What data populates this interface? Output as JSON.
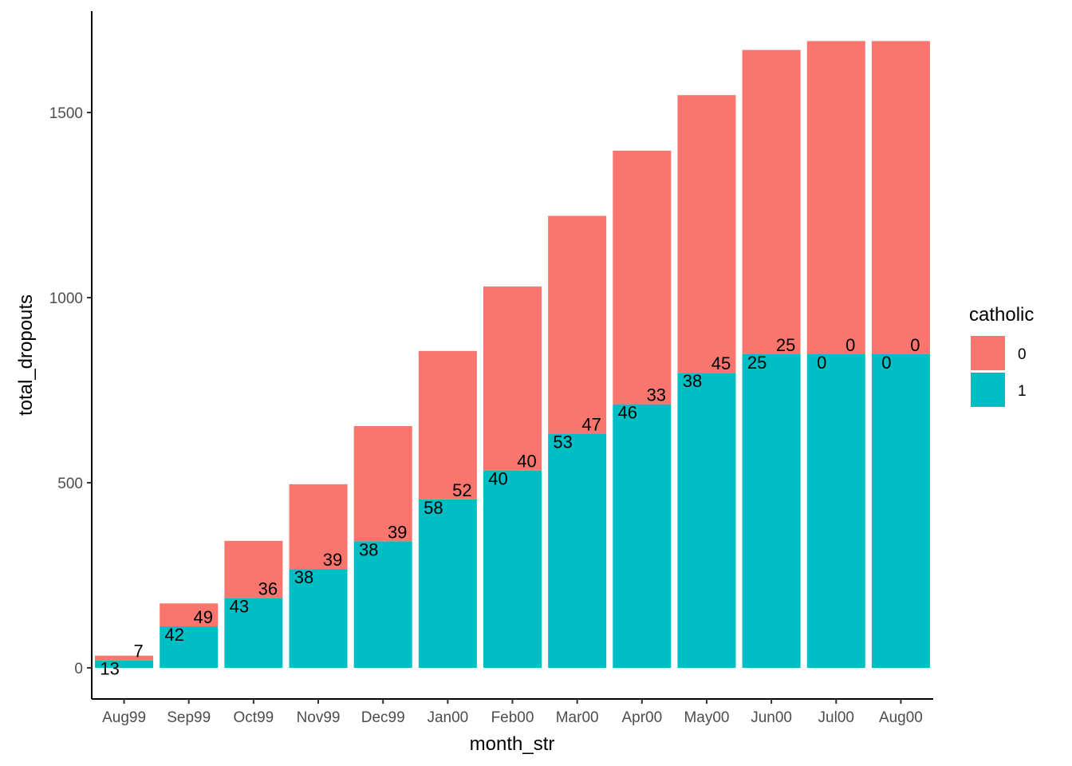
{
  "chart_data": {
    "type": "bar",
    "stacked": true,
    "xlabel": "month_str",
    "ylabel": "total_dropouts",
    "categories": [
      "Aug99",
      "Sep99",
      "Oct99",
      "Nov99",
      "Dec99",
      "Jan00",
      "Feb00",
      "Mar00",
      "Apr00",
      "May00",
      "Jun00",
      "Jul00",
      "Aug00"
    ],
    "ylim": [
      -80,
      1700
    ],
    "yticks": [
      0,
      500,
      1000,
      1500
    ],
    "grid": false,
    "legend": {
      "title": "catholic",
      "position": "right",
      "entries": [
        {
          "label": "0",
          "color": "#F8766D"
        },
        {
          "label": "1",
          "color": "#00BFC4"
        }
      ]
    },
    "series": [
      {
        "name": "1",
        "color": "#00BFC4",
        "values": [
          20,
          112,
          189,
          267,
          342,
          455,
          533,
          633,
          712,
          797,
          847,
          847,
          847
        ]
      },
      {
        "name": "0",
        "color": "#F8766D",
        "values": [
          13,
          62,
          154,
          229,
          311,
          401,
          497,
          588,
          685,
          750,
          822,
          846,
          846
        ]
      }
    ],
    "annotations": {
      "series_1_counts": [
        "13",
        "42",
        "43",
        "38",
        "38",
        "58",
        "40",
        "53",
        "46",
        "38",
        "25",
        "0",
        "0"
      ],
      "series_0_counts": [
        "7",
        "49",
        "36",
        "39",
        "39",
        "52",
        "40",
        "47",
        "33",
        "45",
        "25",
        "0",
        "0"
      ]
    }
  }
}
